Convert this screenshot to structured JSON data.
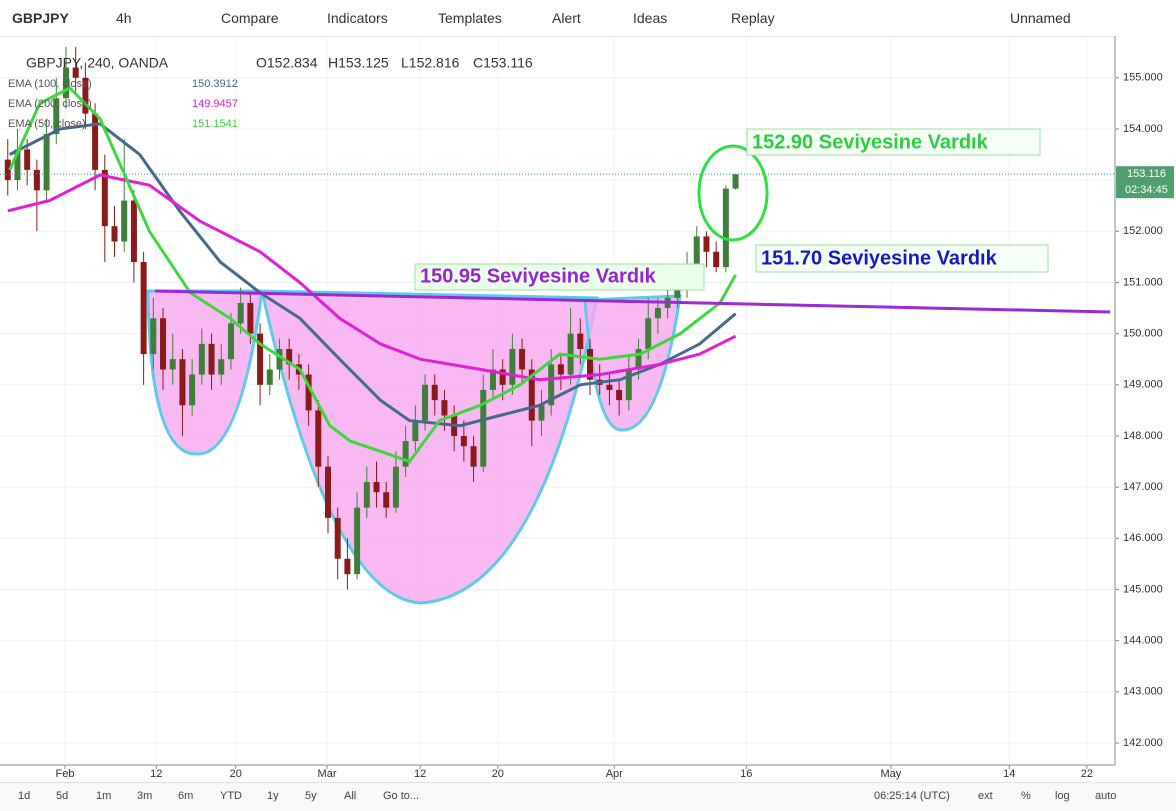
{
  "toolbar": {
    "symbol": "GBPJPY",
    "interval": "4h",
    "compare": "Compare",
    "indicators": "Indicators",
    "templates": "Templates",
    "alert": "Alert",
    "ideas": "Ideas",
    "replay": "Replay",
    "layout": "Unnamed"
  },
  "bottom_bar": {
    "ranges": [
      "1d",
      "5d",
      "1m",
      "3m",
      "6m",
      "YTD",
      "1y",
      "5y",
      "All"
    ],
    "goto": "Go to...",
    "clock": "06:25:14 (UTC)",
    "options": [
      "ext",
      "%",
      "log",
      "auto"
    ]
  },
  "chart_data": {
    "type": "candlestick",
    "legend_header": {
      "symbol": "GBPJPY, 240, OANDA",
      "open": "O152.834",
      "high": "H153.125",
      "low": "L152.816",
      "close": "C153.116"
    },
    "countdown": "02:34:45",
    "up_color": "#3f7f3a",
    "down_color": "#8b1a1a",
    "xlim": [
      -0.8,
      114.1
    ],
    "ylim": [
      141.57,
      155.66
    ],
    "grid": true,
    "xticks": [
      {
        "value": 5.9,
        "label": "Feb"
      },
      {
        "value": 15.3,
        "label": "12"
      },
      {
        "value": 23.5,
        "label": "20"
      },
      {
        "value": 32.9,
        "label": "Mar"
      },
      {
        "value": 42.5,
        "label": "12"
      },
      {
        "value": 50.5,
        "label": "20"
      },
      {
        "value": 62.5,
        "label": "Apr"
      },
      {
        "value": 76.1,
        "label": "16"
      },
      {
        "value": 91,
        "label": "May"
      },
      {
        "value": 103.2,
        "label": "14"
      },
      {
        "value": 111.2,
        "label": "22"
      }
    ],
    "yticks": [
      {
        "value": 142,
        "label": "142.000"
      },
      {
        "value": 143,
        "label": "143.000"
      },
      {
        "value": 144,
        "label": "144.000"
      },
      {
        "value": 145,
        "label": "145.000"
      },
      {
        "value": 146,
        "label": "146.000"
      },
      {
        "value": 147,
        "label": "147.000"
      },
      {
        "value": 148,
        "label": "148.000"
      },
      {
        "value": 149,
        "label": "149.000"
      },
      {
        "value": 150,
        "label": "150.000"
      },
      {
        "value": 151,
        "label": "151.000"
      },
      {
        "value": 152,
        "label": "152.000"
      },
      {
        "value": 153,
        "label": "153.000"
      },
      {
        "value": 154,
        "label": "154.000"
      },
      {
        "value": 155,
        "label": "155.000"
      }
    ],
    "ohlc": [
      [
        153.4,
        153.8,
        152.7,
        153.0
      ],
      [
        153.0,
        154.0,
        152.8,
        153.6
      ],
      [
        153.6,
        153.8,
        152.9,
        153.2
      ],
      [
        153.2,
        153.4,
        152.0,
        152.8
      ],
      [
        152.8,
        154.2,
        152.6,
        153.9
      ],
      [
        153.9,
        155.0,
        153.7,
        154.6
      ],
      [
        154.6,
        155.6,
        154.4,
        155.2
      ],
      [
        155.2,
        155.6,
        154.7,
        155.0
      ],
      [
        155.0,
        155.3,
        154.0,
        154.3
      ],
      [
        154.3,
        154.5,
        152.8,
        153.2
      ],
      [
        153.2,
        153.5,
        151.4,
        152.1
      ],
      [
        152.1,
        152.5,
        151.5,
        151.8
      ],
      [
        151.8,
        153.8,
        151.6,
        152.6
      ],
      [
        152.6,
        152.8,
        151.0,
        151.4
      ],
      [
        151.4,
        151.6,
        149.0,
        149.6
      ],
      [
        149.6,
        150.7,
        149.3,
        150.3
      ],
      [
        150.3,
        150.5,
        148.9,
        149.3
      ],
      [
        149.3,
        150.0,
        149.0,
        149.5
      ],
      [
        149.5,
        149.7,
        148.0,
        148.6
      ],
      [
        148.6,
        149.5,
        148.4,
        149.2
      ],
      [
        149.2,
        150.1,
        149.0,
        149.8
      ],
      [
        149.8,
        150.0,
        148.9,
        149.2
      ],
      [
        149.2,
        149.8,
        149.0,
        149.5
      ],
      [
        149.5,
        150.4,
        149.3,
        150.2
      ],
      [
        150.2,
        150.9,
        150.0,
        150.6
      ],
      [
        150.6,
        150.8,
        149.8,
        150.0
      ],
      [
        150.0,
        150.2,
        148.6,
        149.0
      ],
      [
        149.0,
        149.6,
        148.8,
        149.3
      ],
      [
        149.3,
        149.9,
        149.1,
        149.7
      ],
      [
        149.7,
        149.9,
        149.1,
        149.4
      ],
      [
        149.4,
        149.6,
        148.9,
        149.2
      ],
      [
        149.2,
        149.4,
        148.2,
        148.5
      ],
      [
        148.5,
        148.7,
        147.0,
        147.4
      ],
      [
        147.4,
        147.6,
        146.1,
        146.4
      ],
      [
        146.4,
        146.6,
        145.2,
        145.6
      ],
      [
        145.6,
        146.0,
        145.0,
        145.3
      ],
      [
        145.3,
        146.9,
        145.2,
        146.6
      ],
      [
        146.6,
        147.4,
        146.4,
        147.1
      ],
      [
        147.1,
        147.5,
        146.6,
        146.9
      ],
      [
        146.9,
        147.1,
        146.4,
        146.6
      ],
      [
        146.6,
        147.7,
        146.5,
        147.4
      ],
      [
        147.4,
        148.2,
        147.2,
        147.9
      ],
      [
        147.9,
        148.6,
        147.7,
        148.3
      ],
      [
        148.3,
        149.2,
        148.1,
        149.0
      ],
      [
        149.0,
        149.2,
        148.4,
        148.7
      ],
      [
        148.7,
        148.9,
        148.1,
        148.4
      ],
      [
        148.4,
        148.6,
        147.7,
        148.0
      ],
      [
        148.0,
        148.3,
        147.5,
        147.8
      ],
      [
        147.8,
        148.0,
        147.1,
        147.4
      ],
      [
        147.4,
        149.2,
        147.3,
        148.9
      ],
      [
        148.9,
        149.7,
        148.7,
        149.3
      ],
      [
        149.3,
        149.5,
        148.7,
        149.0
      ],
      [
        149.0,
        150.0,
        148.8,
        149.7
      ],
      [
        149.7,
        149.9,
        149.0,
        149.3
      ],
      [
        149.3,
        149.5,
        147.8,
        148.3
      ],
      [
        148.3,
        148.9,
        148.0,
        148.6
      ],
      [
        148.6,
        149.7,
        148.4,
        149.4
      ],
      [
        149.4,
        149.6,
        148.9,
        149.2
      ],
      [
        149.2,
        150.5,
        149.0,
        150.0
      ],
      [
        150.0,
        150.3,
        149.4,
        149.7
      ],
      [
        149.7,
        149.9,
        148.8,
        149.1
      ],
      [
        149.1,
        149.4,
        148.8,
        149.0
      ],
      [
        149.0,
        149.2,
        148.6,
        148.9
      ],
      [
        148.9,
        149.1,
        148.4,
        148.7
      ],
      [
        148.7,
        149.6,
        148.5,
        149.3
      ],
      [
        149.3,
        149.9,
        149.1,
        149.7
      ],
      [
        149.7,
        150.7,
        149.5,
        150.3
      ],
      [
        150.3,
        150.7,
        150.0,
        150.5
      ],
      [
        150.5,
        151.0,
        150.3,
        150.7
      ],
      [
        150.7,
        151.2,
        150.5,
        150.9
      ],
      [
        150.9,
        151.6,
        150.7,
        151.3
      ],
      [
        151.3,
        152.1,
        151.1,
        151.9
      ],
      [
        151.9,
        152.0,
        151.3,
        151.6
      ],
      [
        151.6,
        151.8,
        151.2,
        151.3
      ],
      [
        151.3,
        152.9,
        151.2,
        152.834
      ],
      [
        152.834,
        153.125,
        152.816,
        153.116
      ]
    ],
    "series": [
      {
        "name": "EMA (100, close)",
        "last_value": "150.3912",
        "color": "#46698c",
        "x": [
          0.2,
          5.4,
          9.5,
          13.6,
          17.7,
          21.9,
          26,
          30.1,
          34.2,
          38.4,
          41.4,
          46.6,
          50.7,
          54.8,
          59,
          63.1,
          67.2,
          71.3,
          75
        ],
        "values": [
          153.5,
          154.0,
          154.1,
          153.5,
          152.4,
          151.4,
          150.8,
          150.3,
          149.5,
          148.7,
          148.3,
          148.2,
          148.4,
          148.6,
          149.0,
          149.1,
          149.4,
          149.8,
          150.39
        ]
      },
      {
        "name": "EMA (200, close)",
        "last_value": "149.9457",
        "color": "#e020d8",
        "x": [
          0,
          4.3,
          9.5,
          14.6,
          19.8,
          26,
          30.1,
          34.2,
          38.4,
          42.5,
          48.7,
          54.8,
          61,
          67.2,
          71.3,
          75
        ],
        "values": [
          152.4,
          152.6,
          153.1,
          152.9,
          152.2,
          151.6,
          151.0,
          150.3,
          149.8,
          149.5,
          149.3,
          149.1,
          149.2,
          149.4,
          149.6,
          149.95
        ]
      },
      {
        "name": "EMA (50, close)",
        "last_value": "151.1541",
        "color": "#3ed83e",
        "x": [
          0.2,
          3.3,
          6.4,
          9.5,
          14.6,
          18.8,
          22.9,
          26,
          30.1,
          33.2,
          35.3,
          38.4,
          41.4,
          44.5,
          48.7,
          52.8,
          56.9,
          61,
          65.2,
          69.3,
          73.4,
          75
        ],
        "values": [
          153.2,
          154.5,
          154.8,
          154.2,
          152.0,
          150.8,
          150.3,
          149.8,
          149.3,
          148.2,
          147.9,
          147.7,
          147.5,
          148.3,
          148.6,
          149.0,
          149.6,
          149.5,
          149.6,
          150.0,
          150.6,
          151.15
        ]
      }
    ],
    "annotations": [
      "152.90 Seviyesine Vardık",
      "151.70 Seviyesine Vardık",
      "150.95 Seviyesine Vardık"
    ]
  }
}
